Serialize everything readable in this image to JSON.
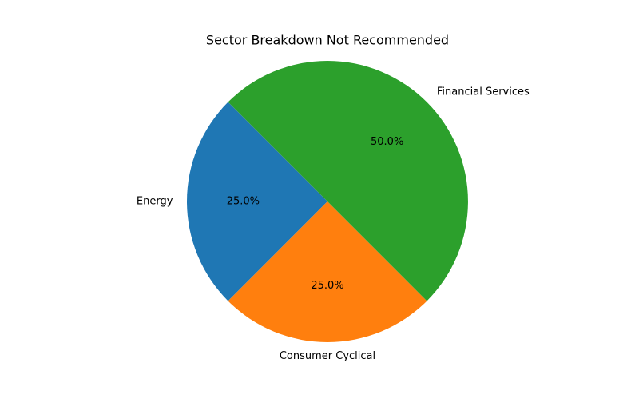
{
  "chart_data": {
    "type": "pie",
    "title": "Sector Breakdown Not Recommended",
    "labels": [
      "Energy",
      "Consumer Cyclical",
      "Financial Services"
    ],
    "values": [
      25.0,
      25.0,
      50.0
    ],
    "percent_labels": [
      "25.0%",
      "25.0%",
      "50.0%"
    ],
    "colors": [
      "#1f77b4",
      "#ff7f0e",
      "#2ca02c"
    ],
    "start_angle_deg": 135,
    "direction": "counterclockwise",
    "legend": "none"
  }
}
